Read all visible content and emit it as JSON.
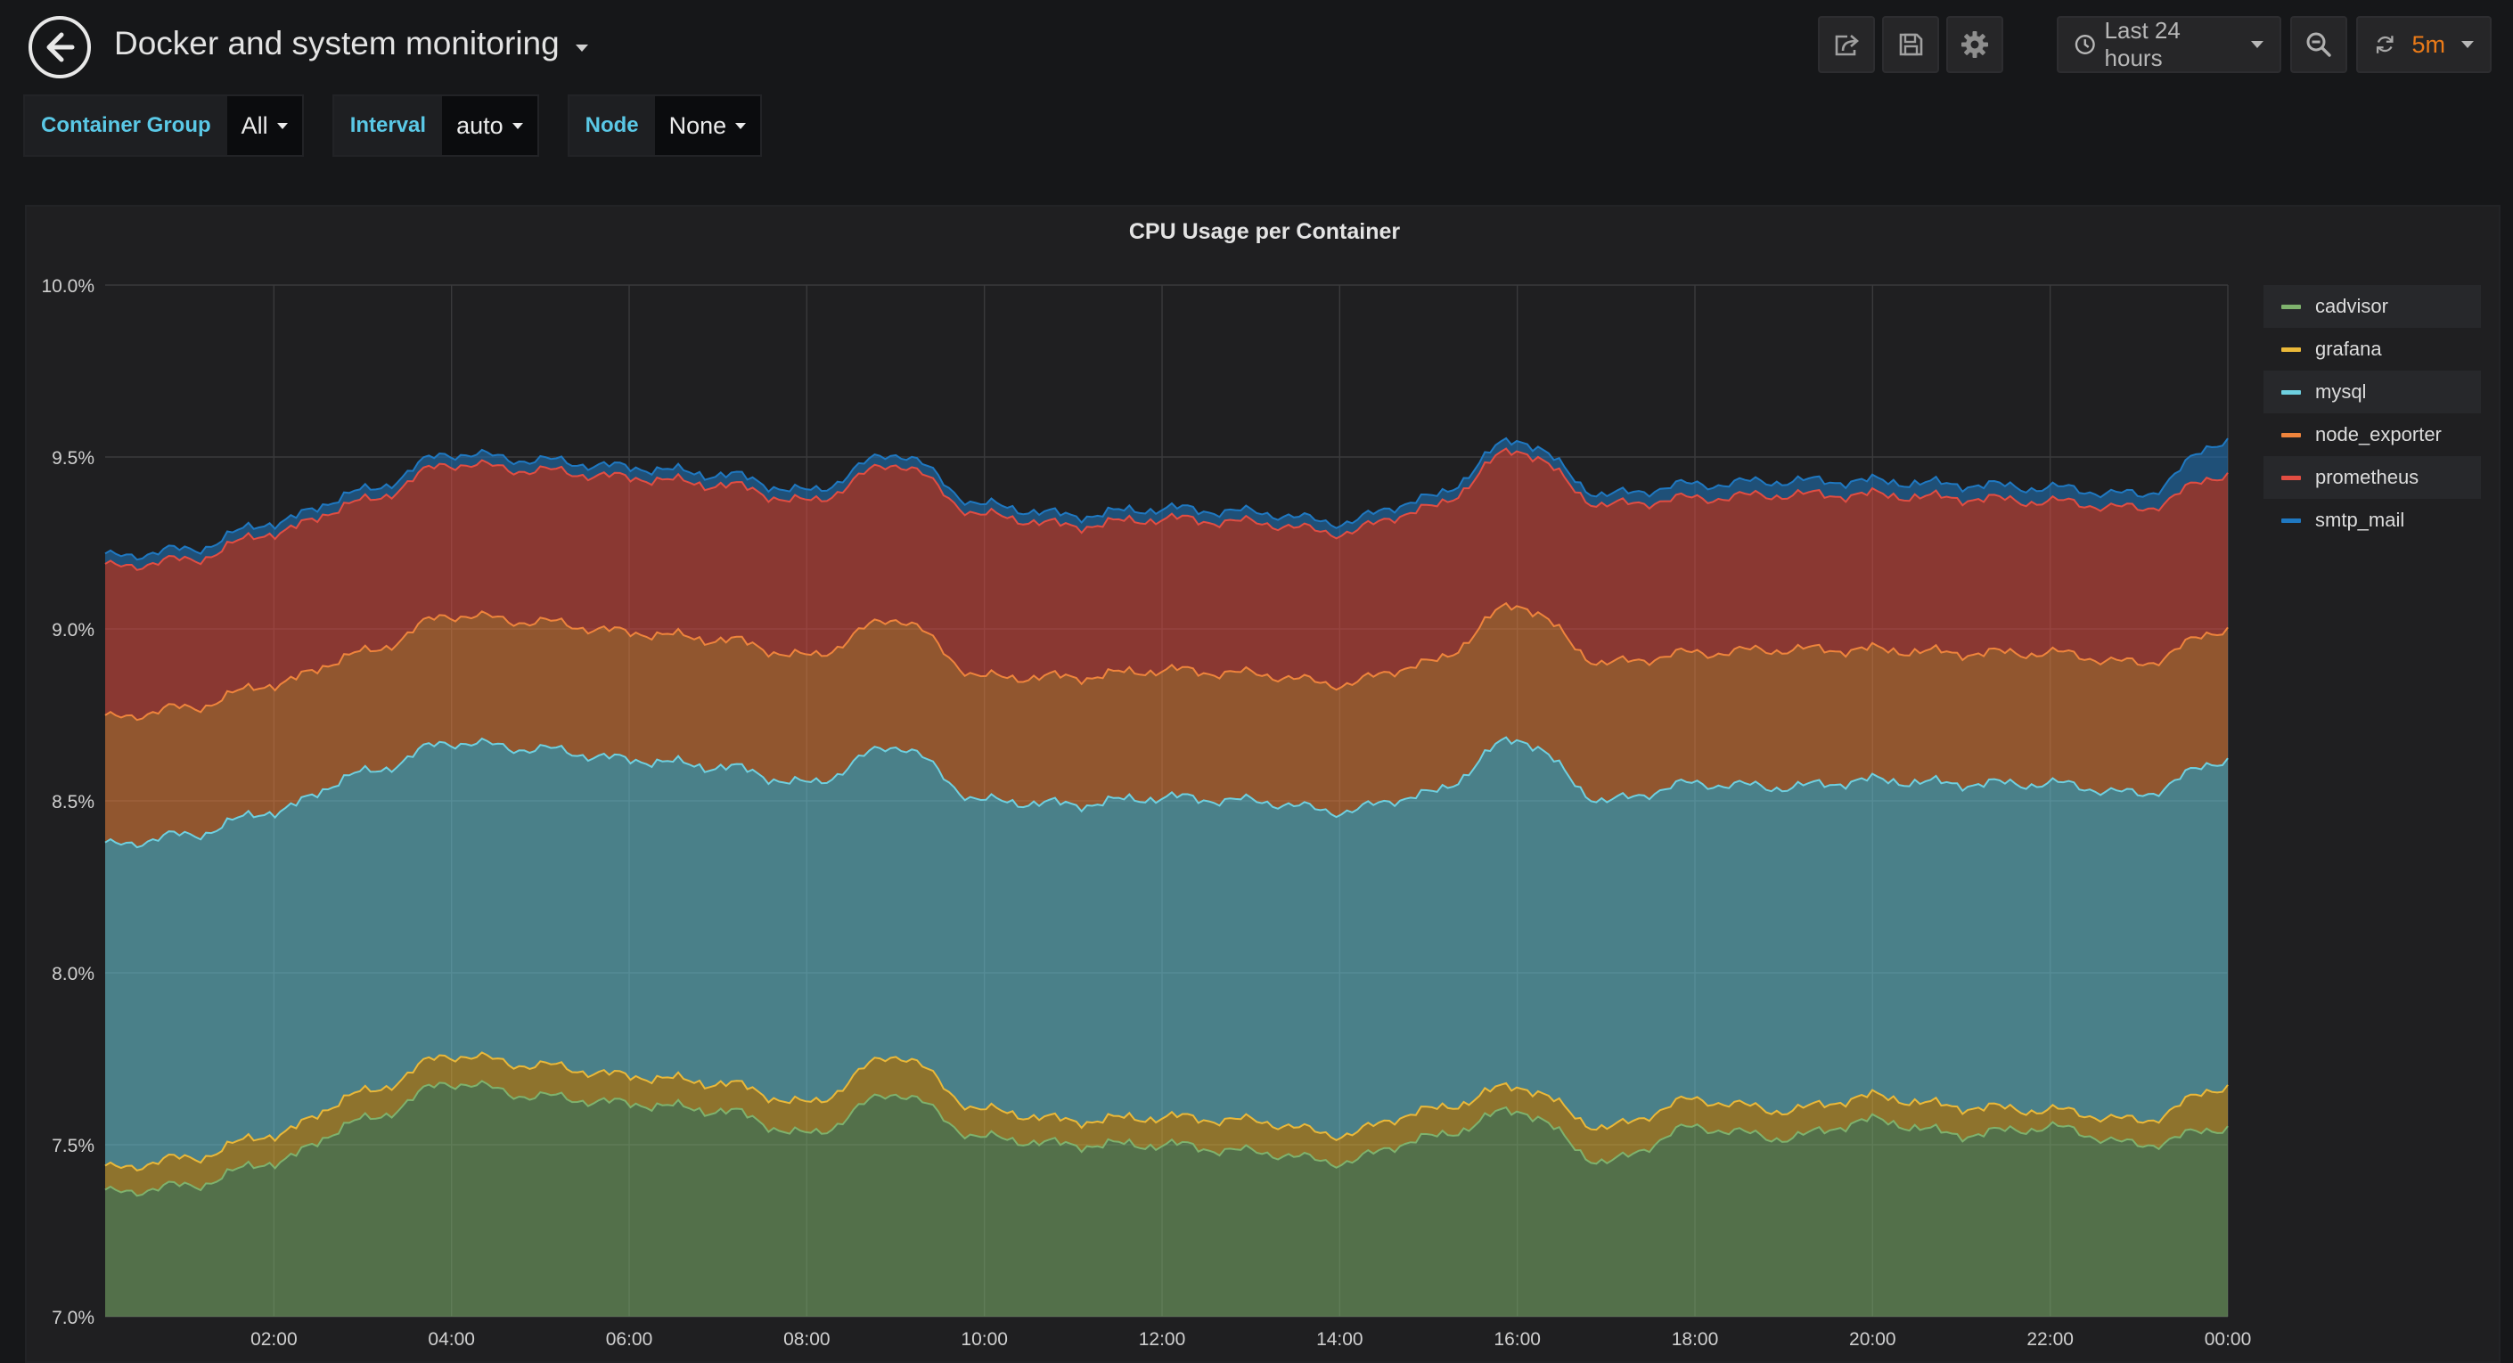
{
  "header": {
    "title": "Docker and system monitoring",
    "time_range": "Last 24 hours",
    "refresh_interval": "5m"
  },
  "variables": [
    {
      "label": "Container Group",
      "value": "All"
    },
    {
      "label": "Interval",
      "value": "auto"
    },
    {
      "label": "Node",
      "value": "None"
    }
  ],
  "panel": {
    "title": "CPU Usage per Container"
  },
  "chart_data": {
    "type": "area",
    "stacked": true,
    "title": "CPU Usage per Container",
    "x_ticks": [
      "02:00",
      "04:00",
      "06:00",
      "08:00",
      "10:00",
      "12:00",
      "14:00",
      "16:00",
      "18:00",
      "20:00",
      "22:00",
      "00:00"
    ],
    "x_hours": [
      0.1,
      1,
      2,
      3,
      4,
      5,
      6,
      7,
      8,
      9,
      10,
      11,
      12,
      13,
      14,
      15,
      16,
      17,
      18,
      19,
      20,
      21,
      22,
      23,
      24
    ],
    "y_ticks": [
      "7.0%",
      "7.5%",
      "8.0%",
      "8.5%",
      "9.0%",
      "9.5%",
      "10.0%"
    ],
    "ylim": [
      7.0,
      10.0
    ],
    "legend_position": "right",
    "series": [
      {
        "name": "cadvisor",
        "color": "#7eb26d",
        "cumulative": [
          7.36,
          7.38,
          7.45,
          7.57,
          7.68,
          7.64,
          7.62,
          7.6,
          7.53,
          7.65,
          7.52,
          7.5,
          7.5,
          7.48,
          7.45,
          7.52,
          7.6,
          7.45,
          7.55,
          7.52,
          7.57,
          7.53,
          7.55,
          7.5,
          7.55
        ]
      },
      {
        "name": "grafana",
        "color": "#eab839",
        "cumulative": [
          7.43,
          7.46,
          7.53,
          7.65,
          7.76,
          7.73,
          7.7,
          7.68,
          7.62,
          7.76,
          7.6,
          7.57,
          7.58,
          7.57,
          7.53,
          7.6,
          7.67,
          7.55,
          7.63,
          7.6,
          7.64,
          7.61,
          7.6,
          7.57,
          7.67
        ]
      },
      {
        "name": "mysql",
        "color": "#6ed0e0",
        "cumulative": [
          8.37,
          8.4,
          8.47,
          8.58,
          8.67,
          8.65,
          8.62,
          8.6,
          8.55,
          8.66,
          8.5,
          8.49,
          8.51,
          8.5,
          8.47,
          8.52,
          8.68,
          8.5,
          8.55,
          8.54,
          8.56,
          8.55,
          8.55,
          8.52,
          8.62
        ]
      },
      {
        "name": "node_exporter",
        "color": "#ef843c",
        "cumulative": [
          8.74,
          8.77,
          8.84,
          8.93,
          9.04,
          9.02,
          8.99,
          8.97,
          8.92,
          9.03,
          8.86,
          8.86,
          8.88,
          8.87,
          8.84,
          8.9,
          9.07,
          8.9,
          8.93,
          8.94,
          8.94,
          8.93,
          8.93,
          8.9,
          9.0
        ]
      },
      {
        "name": "prometheus",
        "color": "#e24d42",
        "cumulative": [
          9.18,
          9.2,
          9.28,
          9.37,
          9.48,
          9.46,
          9.44,
          9.42,
          9.37,
          9.48,
          9.33,
          9.3,
          9.32,
          9.31,
          9.28,
          9.35,
          9.52,
          9.36,
          9.38,
          9.39,
          9.39,
          9.38,
          9.37,
          9.35,
          9.45
        ]
      },
      {
        "name": "smtp_mail",
        "color": "#1f78c1",
        "cumulative": [
          9.21,
          9.23,
          9.31,
          9.4,
          9.51,
          9.49,
          9.47,
          9.45,
          9.4,
          9.51,
          9.36,
          9.33,
          9.35,
          9.34,
          9.31,
          9.38,
          9.55,
          9.39,
          9.42,
          9.43,
          9.43,
          9.42,
          9.41,
          9.39,
          9.55
        ]
      }
    ]
  },
  "icons": {
    "back": "arrow-left-circle-icon",
    "share": "share-icon",
    "save": "save-icon",
    "settings": "gear-icon",
    "clock": "clock-icon",
    "zoom_out": "zoom-out-icon",
    "refresh": "refresh-icon"
  }
}
